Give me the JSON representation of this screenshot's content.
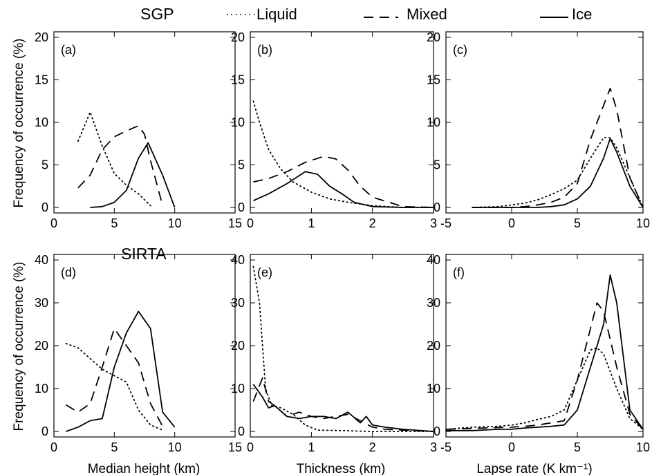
{
  "legend": {
    "site_label": "SGP",
    "liquid_label": "Liquid",
    "mixed_label": "Mixed",
    "ice_label": "Ice"
  },
  "lower_site_label": "SIRTA",
  "ylabel_top": "Frequency of occurrence (%)",
  "ylabel_bottom": "Frequency of occurrence (%)",
  "xlabels": {
    "height": "Median height (km)",
    "thickness": "Thickness (km)",
    "lapse": "Lapse rate (K km⁻¹)"
  },
  "chart_data": [
    {
      "panel": "(a)",
      "site": "SGP",
      "type": "line",
      "xlim": [
        0,
        15
      ],
      "ylim": [
        0,
        20
      ],
      "xticks": [
        0,
        5,
        10,
        15
      ],
      "yticks": [
        0,
        5,
        10,
        15,
        20
      ],
      "series": [
        {
          "name": "Liquid",
          "style": "dotted",
          "x": [
            2,
            3,
            4,
            5,
            6,
            7,
            8
          ],
          "y": [
            7.8,
            11.2,
            7.2,
            4.0,
            2.6,
            1.6,
            0.2
          ]
        },
        {
          "name": "Mixed",
          "style": "dashed",
          "x": [
            2,
            3,
            4,
            5,
            6,
            7,
            7.5,
            8,
            9
          ],
          "y": [
            2.3,
            3.8,
            6.8,
            8.3,
            9.0,
            9.6,
            8.6,
            5.5,
            0.2
          ]
        },
        {
          "name": "Ice",
          "style": "solid",
          "x": [
            3,
            4,
            5,
            6,
            7,
            7.8,
            9,
            10
          ],
          "y": [
            0,
            0.1,
            0.6,
            2.0,
            5.8,
            7.6,
            3.8,
            0
          ]
        }
      ]
    },
    {
      "panel": "(b)",
      "site": "SGP",
      "type": "line",
      "xlim": [
        0,
        3
      ],
      "ylim": [
        0,
        20
      ],
      "xticks": [
        0,
        1,
        2,
        3
      ],
      "yticks": [
        0,
        5,
        10,
        15,
        20
      ],
      "series": [
        {
          "name": "Liquid",
          "style": "dotted",
          "x": [
            0.05,
            0.15,
            0.3,
            0.5,
            0.7,
            1.0,
            1.3,
            1.6,
            2.0,
            2.5,
            3.0
          ],
          "y": [
            12.5,
            10.0,
            6.8,
            4.5,
            3.0,
            1.8,
            1.0,
            0.6,
            0.2,
            0,
            0
          ]
        },
        {
          "name": "Mixed",
          "style": "dashed",
          "x": [
            0.05,
            0.3,
            0.6,
            0.9,
            1.2,
            1.4,
            1.6,
            1.8,
            2.0,
            2.5,
            3.0
          ],
          "y": [
            3.0,
            3.4,
            4.2,
            5.3,
            6.0,
            5.7,
            4.4,
            2.5,
            1.2,
            0.1,
            0
          ]
        },
        {
          "name": "Ice",
          "style": "solid",
          "x": [
            0.05,
            0.3,
            0.6,
            0.9,
            1.1,
            1.3,
            1.5,
            1.7,
            2.0,
            2.5,
            3.0
          ],
          "y": [
            0.8,
            1.6,
            2.8,
            4.2,
            3.9,
            2.5,
            1.6,
            0.6,
            0.1,
            0,
            0
          ]
        }
      ]
    },
    {
      "panel": "(c)",
      "site": "SGP",
      "type": "line",
      "xlim": [
        -5,
        10
      ],
      "ylim": [
        0,
        20
      ],
      "xticks": [
        -5,
        0,
        5,
        10
      ],
      "yticks": [
        0,
        5,
        10,
        15,
        20
      ],
      "series": [
        {
          "name": "Liquid",
          "style": "dotted",
          "x": [
            -3,
            -1,
            0,
            1,
            2,
            3,
            4,
            5,
            6,
            7,
            7.5,
            8,
            9,
            10
          ],
          "y": [
            0,
            0.1,
            0.3,
            0.5,
            0.9,
            1.5,
            2.2,
            3.2,
            5.8,
            8.2,
            8.2,
            7.0,
            3.5,
            0
          ]
        },
        {
          "name": "Mixed",
          "style": "dashed",
          "x": [
            -3,
            0,
            1,
            2,
            3,
            4,
            5,
            6,
            7,
            7.5,
            8,
            9,
            10
          ],
          "y": [
            0,
            0,
            0.1,
            0.3,
            0.6,
            1.2,
            2.8,
            8.0,
            12.0,
            14.0,
            11.5,
            3.5,
            0
          ]
        },
        {
          "name": "Ice",
          "style": "solid",
          "x": [
            -3,
            0,
            2,
            3,
            4,
            5,
            6,
            7,
            7.5,
            8,
            9,
            10
          ],
          "y": [
            0,
            0,
            0,
            0.1,
            0.3,
            1.0,
            2.5,
            5.8,
            8.1,
            6.5,
            2.5,
            0
          ]
        }
      ]
    },
    {
      "panel": "(d)",
      "site": "SIRTA",
      "type": "line",
      "xlim": [
        0,
        15
      ],
      "ylim": [
        0,
        40
      ],
      "xticks": [
        0,
        5,
        10,
        15
      ],
      "yticks": [
        0,
        10,
        20,
        30,
        40
      ],
      "series": [
        {
          "name": "Liquid",
          "style": "dotted",
          "x": [
            1,
            2,
            3,
            4,
            5,
            6,
            7,
            8,
            9
          ],
          "y": [
            20.5,
            19.5,
            17.0,
            14.5,
            13.0,
            11.5,
            5.0,
            1.5,
            0.3
          ]
        },
        {
          "name": "Mixed",
          "style": "dashed",
          "x": [
            1,
            2,
            3,
            4,
            5,
            6,
            7,
            8,
            9
          ],
          "y": [
            6.2,
            4.5,
            6.5,
            15.0,
            24.0,
            20.0,
            16.0,
            6.5,
            1.2
          ]
        },
        {
          "name": "Ice",
          "style": "solid",
          "x": [
            1,
            2,
            3,
            4,
            5,
            6,
            7,
            8,
            9,
            10
          ],
          "y": [
            0,
            1.0,
            2.5,
            3.0,
            15.0,
            23.0,
            28.0,
            24.0,
            4.5,
            1.0
          ]
        }
      ]
    },
    {
      "panel": "(e)",
      "site": "SIRTA",
      "type": "line",
      "xlim": [
        0,
        3
      ],
      "ylim": [
        0,
        40
      ],
      "xticks": [
        0,
        1,
        2,
        3
      ],
      "yticks": [
        0,
        10,
        20,
        30,
        40
      ],
      "series": [
        {
          "name": "Liquid",
          "style": "dotted",
          "x": [
            0.05,
            0.15,
            0.25,
            0.35,
            0.5,
            0.7,
            0.9,
            1.1,
            1.5,
            2.0,
            3.0
          ],
          "y": [
            38.5,
            30.0,
            10.0,
            6.0,
            5.5,
            4.0,
            1.5,
            0.3,
            0.2,
            0,
            0
          ]
        },
        {
          "name": "Mixed",
          "style": "dashed",
          "x": [
            0.05,
            0.2,
            0.3,
            0.4,
            0.6,
            0.8,
            1.0,
            1.2,
            1.4,
            1.6,
            1.8,
            2.0,
            2.2,
            2.5,
            3.0
          ],
          "y": [
            7.0,
            12.5,
            7.0,
            6.0,
            3.5,
            4.5,
            3.5,
            3.0,
            3.5,
            4.0,
            2.5,
            1.0,
            0.5,
            0.3,
            0
          ]
        },
        {
          "name": "Ice",
          "style": "solid",
          "x": [
            0.05,
            0.2,
            0.3,
            0.4,
            0.6,
            0.8,
            1.0,
            1.2,
            1.4,
            1.6,
            1.8,
            1.9,
            2.0,
            2.2,
            2.5,
            3.0
          ],
          "y": [
            11.0,
            8.0,
            5.5,
            6.0,
            3.5,
            3.0,
            3.5,
            3.5,
            3.0,
            4.5,
            2.0,
            3.5,
            1.5,
            1.0,
            0.5,
            0
          ]
        }
      ]
    },
    {
      "panel": "(f)",
      "site": "SIRTA",
      "type": "line",
      "xlim": [
        -5,
        10
      ],
      "ylim": [
        0,
        40
      ],
      "xticks": [
        -5,
        0,
        5,
        10
      ],
      "yticks": [
        0,
        10,
        20,
        30,
        40
      ],
      "series": [
        {
          "name": "Liquid",
          "style": "dotted",
          "x": [
            -5,
            -3,
            -1,
            0,
            1,
            2,
            3,
            4,
            5,
            6,
            6.5,
            7,
            8,
            9,
            10
          ],
          "y": [
            0.5,
            1.0,
            1.2,
            1.5,
            2.0,
            2.8,
            3.5,
            5.0,
            12.0,
            19.0,
            19.5,
            18.0,
            10.0,
            3.0,
            0.5
          ]
        },
        {
          "name": "Mixed",
          "style": "dashed",
          "x": [
            -5,
            -2,
            0,
            1,
            2,
            3,
            4,
            5,
            6,
            6.5,
            7,
            8,
            9,
            10
          ],
          "y": [
            0.5,
            0.8,
            1.0,
            1.2,
            1.5,
            2.0,
            2.5,
            12.0,
            24.0,
            30.0,
            28.0,
            15.0,
            4.0,
            0.5
          ]
        },
        {
          "name": "Ice",
          "style": "solid",
          "x": [
            -5,
            -3,
            -1,
            0,
            1,
            2,
            3,
            4,
            5,
            6,
            7,
            7.5,
            8,
            9,
            10
          ],
          "y": [
            0.2,
            0.2,
            0.5,
            0.5,
            0.8,
            1.0,
            1.2,
            1.5,
            5.0,
            15.0,
            25.0,
            36.5,
            30.0,
            5.0,
            0.5
          ]
        }
      ]
    }
  ]
}
